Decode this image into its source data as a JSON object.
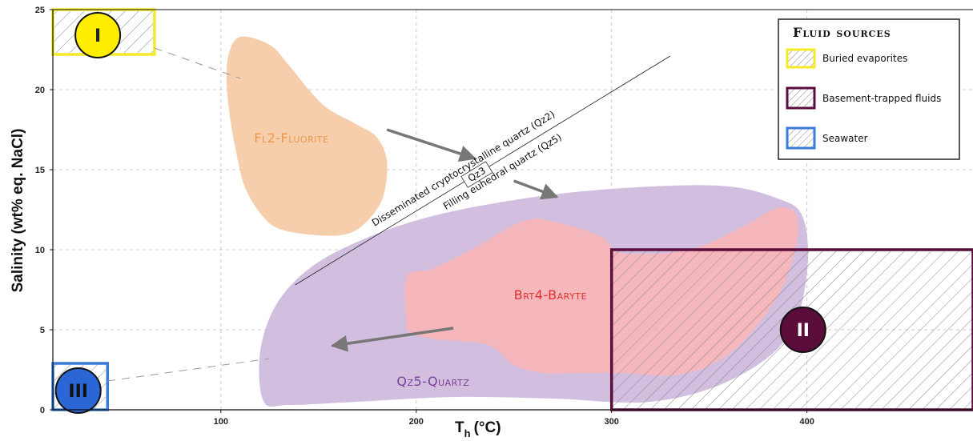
{
  "chart_data": {
    "type": "scatter",
    "xlabel_main": "T",
    "xlabel_sub": "h",
    "xlabel_unit": "(°C)",
    "ylabel": "Salinity (wt% eq. NaCl)",
    "xlim": [
      14,
      485
    ],
    "ylim": [
      0,
      25
    ],
    "x_ticks": [
      100,
      200,
      300,
      400
    ],
    "y_ticks": [
      0,
      5,
      10,
      15,
      20,
      25
    ],
    "grid": true,
    "fields": [
      {
        "name": "Fl2-Fluorite",
        "color": "#f6c9a2",
        "label_color": "#e8994a",
        "label_at": [
          117,
          16.7
        ],
        "outline": [
          [
            110,
            23.3
          ],
          [
            125,
            22.8
          ],
          [
            135,
            21.5
          ],
          [
            145,
            20
          ],
          [
            155,
            18.8
          ],
          [
            170,
            17.8
          ],
          [
            180,
            17
          ],
          [
            185,
            15.5
          ],
          [
            183,
            13.3
          ],
          [
            175,
            11.8
          ],
          [
            165,
            11
          ],
          [
            150,
            10.9
          ],
          [
            130,
            11.3
          ],
          [
            120,
            12.3
          ],
          [
            112,
            14
          ],
          [
            108,
            16
          ],
          [
            105,
            18
          ],
          [
            103,
            20.3
          ],
          [
            104,
            22.2
          ]
        ]
      },
      {
        "name": "Qz5-Quartz",
        "color": "#cdb8dc",
        "label_color": "#7a3f9a",
        "label_at": [
          190,
          1.5
        ],
        "outline": [
          [
            122,
            0.5
          ],
          [
            135,
            0.3
          ],
          [
            170,
            0.5
          ],
          [
            220,
            0.8
          ],
          [
            270,
            0.7
          ],
          [
            320,
            0.5
          ],
          [
            360,
            1.8
          ],
          [
            390,
            4.5
          ],
          [
            400,
            8.5
          ],
          [
            398,
            12
          ],
          [
            385,
            13.2
          ],
          [
            355,
            14
          ],
          [
            300,
            13.8
          ],
          [
            250,
            13.1
          ],
          [
            205,
            12
          ],
          [
            170,
            10.5
          ],
          [
            145,
            8.8
          ],
          [
            128,
            6.5
          ],
          [
            120,
            3.5
          ]
        ]
      },
      {
        "name": "Brt4-Baryte",
        "color": "#f8b6b8",
        "label_color": "#e0302a",
        "label_at": [
          250,
          6.9
        ],
        "outline": [
          [
            195,
            5.4
          ],
          [
            195,
            8.3
          ],
          [
            208,
            8.8
          ],
          [
            228,
            10
          ],
          [
            255,
            11.8
          ],
          [
            272,
            11.7
          ],
          [
            295,
            10.8
          ],
          [
            305,
            9.8
          ],
          [
            340,
            10
          ],
          [
            368,
            11.5
          ],
          [
            385,
            12.6
          ],
          [
            395,
            12.1
          ],
          [
            393,
            9.5
          ],
          [
            382,
            6.5
          ],
          [
            360,
            3.5
          ],
          [
            335,
            2.2
          ],
          [
            305,
            2.3
          ],
          [
            285,
            2.3
          ],
          [
            265,
            2.3
          ],
          [
            250,
            2.8
          ],
          [
            238,
            4
          ],
          [
            222,
            4.3
          ],
          [
            210,
            4.4
          ],
          [
            197,
            4.8
          ]
        ]
      }
    ],
    "sources": [
      {
        "id": "I",
        "name": "Buried evaporites",
        "x_range": [
          14,
          66
        ],
        "y_range": [
          22.2,
          25
        ],
        "border": "#f4ea2a",
        "marker_fill": "#ffee00",
        "marker_text": "#222222",
        "marker_at": [
          37,
          23.4
        ]
      },
      {
        "id": "II",
        "name": "Basement-trapped fluids",
        "x_range": [
          300,
          485
        ],
        "y_range": [
          0,
          10
        ],
        "border": "#5a0d3a",
        "marker_fill": "#5a0d3a",
        "marker_text": "#ffffff",
        "marker_at": [
          398,
          5
        ]
      },
      {
        "id": "III",
        "name": "Seawater",
        "x_range": [
          14,
          42
        ],
        "y_range": [
          0,
          2.9
        ],
        "border": "#3a7bd5",
        "marker_fill": "#2a66d6",
        "marker_text": "#111111",
        "marker_at": [
          27,
          1.2
        ]
      }
    ],
    "mixing_lines": [
      {
        "from": [
          66,
          22.6
        ],
        "to": [
          110,
          20.7
        ]
      },
      {
        "from": [
          42,
          1.8
        ],
        "to": [
          125,
          3.2
        ]
      }
    ],
    "divider": {
      "from": [
        138,
        7.8
      ],
      "to": [
        330,
        22.1
      ]
    },
    "trend_labels": [
      {
        "text": "Disseminated cryptocrystalline quartz (Qz2)",
        "at": [
          225,
          14.9
        ]
      },
      {
        "text": "Filling euhedral quartz (Qz5)",
        "at": [
          245,
          14.7
        ]
      }
    ],
    "divider_box_label": "Qz3",
    "arrows": [
      {
        "from": [
          185,
          17.5
        ],
        "to": [
          230,
          15.7
        ]
      },
      {
        "from": [
          250,
          14.3
        ],
        "to": [
          272,
          13.3
        ]
      },
      {
        "from": [
          219,
          5.1
        ],
        "to": [
          157,
          4.0
        ]
      }
    ]
  },
  "legend": {
    "title": "Fluid sources",
    "items": [
      {
        "label": "Buried evaporites",
        "color": "#f4ea2a"
      },
      {
        "label": "Basement-trapped fluids",
        "color": "#5a0d3a"
      },
      {
        "label": "Seawater",
        "color": "#3a7bd5"
      }
    ]
  }
}
